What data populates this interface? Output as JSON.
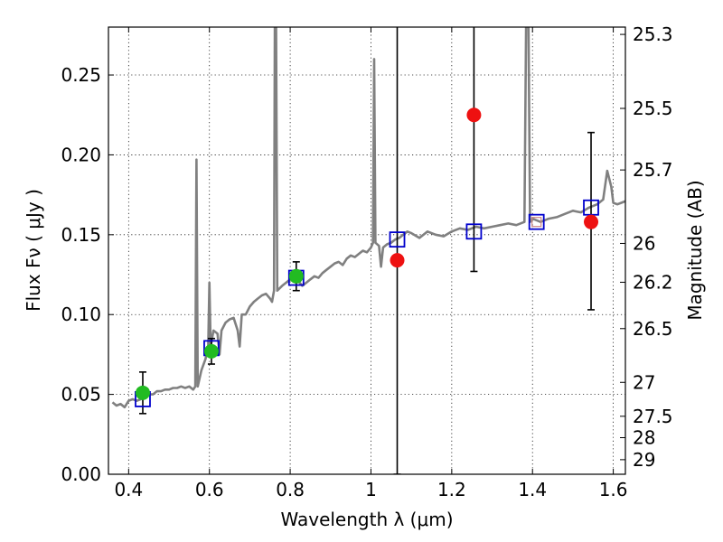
{
  "chart_data": {
    "type": "scatter",
    "xlabel": "Wavelength  λ (μm)",
    "ylabel": "Flux  Fν  ( μJy )",
    "ylabel_right": "Magnitude (AB)",
    "xlim": [
      0.35,
      1.63
    ],
    "ylim": [
      0.0,
      0.28
    ],
    "grid": true,
    "x_ticks": [
      {
        "value": 0.4,
        "label": "0.4"
      },
      {
        "value": 0.6,
        "label": "0.6"
      },
      {
        "value": 0.8,
        "label": "0.8"
      },
      {
        "value": 1.0,
        "label": "1"
      },
      {
        "value": 1.2,
        "label": "1.2"
      },
      {
        "value": 1.4,
        "label": "1.4"
      },
      {
        "value": 1.6,
        "label": "1.6"
      }
    ],
    "y_ticks": [
      {
        "value": 0.0,
        "label": "0.00"
      },
      {
        "value": 0.05,
        "label": "0.05"
      },
      {
        "value": 0.1,
        "label": "0.10"
      },
      {
        "value": 0.15,
        "label": "0.15"
      },
      {
        "value": 0.2,
        "label": "0.20"
      },
      {
        "value": 0.25,
        "label": "0.25"
      }
    ],
    "right_ticks": [
      {
        "mag": 25.3,
        "label": "25.3"
      },
      {
        "mag": 25.5,
        "label": "25.5"
      },
      {
        "mag": 25.7,
        "label": "25.7"
      },
      {
        "mag": 26.0,
        "label": "26"
      },
      {
        "mag": 26.2,
        "label": "26.2"
      },
      {
        "mag": 26.5,
        "label": "26.5"
      },
      {
        "mag": 27.0,
        "label": "27"
      },
      {
        "mag": 27.5,
        "label": "27.5"
      },
      {
        "mag": 28.0,
        "label": "28"
      },
      {
        "mag": 29.0,
        "label": "29"
      }
    ],
    "colors": {
      "model": "#808080",
      "model_photometry": "#0000cc",
      "detections": "#22bb22",
      "nondetections": "#ee1111",
      "errorbars": "#000000",
      "faint_square": "#cc8888"
    },
    "series": [
      {
        "role": "model_spectrum",
        "points": [
          [
            0.36,
            0.045
          ],
          [
            0.37,
            0.043
          ],
          [
            0.38,
            0.044
          ],
          [
            0.39,
            0.042
          ],
          [
            0.4,
            0.046
          ],
          [
            0.41,
            0.047
          ],
          [
            0.42,
            0.046
          ],
          [
            0.43,
            0.047
          ],
          [
            0.44,
            0.049
          ],
          [
            0.45,
            0.05
          ],
          [
            0.46,
            0.05
          ],
          [
            0.47,
            0.052
          ],
          [
            0.48,
            0.052
          ],
          [
            0.49,
            0.053
          ],
          [
            0.5,
            0.053
          ],
          [
            0.51,
            0.054
          ],
          [
            0.52,
            0.054
          ],
          [
            0.53,
            0.055
          ],
          [
            0.54,
            0.054
          ],
          [
            0.55,
            0.055
          ],
          [
            0.56,
            0.053
          ],
          [
            0.565,
            0.055
          ],
          [
            0.568,
            0.197
          ],
          [
            0.571,
            0.055
          ],
          [
            0.58,
            0.065
          ],
          [
            0.59,
            0.072
          ],
          [
            0.597,
            0.08
          ],
          [
            0.6,
            0.12
          ],
          [
            0.603,
            0.08
          ],
          [
            0.61,
            0.09
          ],
          [
            0.62,
            0.088
          ],
          [
            0.625,
            0.075
          ],
          [
            0.63,
            0.09
          ],
          [
            0.64,
            0.095
          ],
          [
            0.65,
            0.097
          ],
          [
            0.66,
            0.098
          ],
          [
            0.67,
            0.09
          ],
          [
            0.675,
            0.08
          ],
          [
            0.68,
            0.1
          ],
          [
            0.69,
            0.1
          ],
          [
            0.7,
            0.105
          ],
          [
            0.71,
            0.108
          ],
          [
            0.72,
            0.11
          ],
          [
            0.73,
            0.112
          ],
          [
            0.74,
            0.113
          ],
          [
            0.75,
            0.11
          ],
          [
            0.755,
            0.108
          ],
          [
            0.76,
            0.115
          ],
          [
            0.762,
            0.28
          ],
          [
            0.765,
            0.28
          ],
          [
            0.768,
            0.115
          ],
          [
            0.78,
            0.118
          ],
          [
            0.79,
            0.12
          ],
          [
            0.8,
            0.122
          ],
          [
            0.81,
            0.123
          ],
          [
            0.82,
            0.121
          ],
          [
            0.83,
            0.118
          ],
          [
            0.84,
            0.12
          ],
          [
            0.85,
            0.122
          ],
          [
            0.86,
            0.124
          ],
          [
            0.87,
            0.123
          ],
          [
            0.88,
            0.126
          ],
          [
            0.89,
            0.128
          ],
          [
            0.9,
            0.13
          ],
          [
            0.91,
            0.132
          ],
          [
            0.92,
            0.133
          ],
          [
            0.93,
            0.131
          ],
          [
            0.94,
            0.135
          ],
          [
            0.95,
            0.137
          ],
          [
            0.96,
            0.136
          ],
          [
            0.97,
            0.138
          ],
          [
            0.98,
            0.14
          ],
          [
            0.99,
            0.139
          ],
          [
            1.0,
            0.142
          ],
          [
            1.005,
            0.145
          ],
          [
            1.008,
            0.26
          ],
          [
            1.011,
            0.145
          ],
          [
            1.02,
            0.143
          ],
          [
            1.025,
            0.13
          ],
          [
            1.03,
            0.142
          ],
          [
            1.04,
            0.144
          ],
          [
            1.05,
            0.145
          ],
          [
            1.06,
            0.147
          ],
          [
            1.07,
            0.148
          ],
          [
            1.08,
            0.15
          ],
          [
            1.09,
            0.152
          ],
          [
            1.1,
            0.151
          ],
          [
            1.12,
            0.148
          ],
          [
            1.14,
            0.152
          ],
          [
            1.16,
            0.15
          ],
          [
            1.18,
            0.149
          ],
          [
            1.2,
            0.152
          ],
          [
            1.22,
            0.154
          ],
          [
            1.24,
            0.153
          ],
          [
            1.26,
            0.155
          ],
          [
            1.28,
            0.154
          ],
          [
            1.3,
            0.155
          ],
          [
            1.32,
            0.156
          ],
          [
            1.34,
            0.157
          ],
          [
            1.36,
            0.156
          ],
          [
            1.38,
            0.158
          ],
          [
            1.384,
            0.28
          ],
          [
            1.39,
            0.28
          ],
          [
            1.394,
            0.158
          ],
          [
            1.4,
            0.16
          ],
          [
            1.42,
            0.158
          ],
          [
            1.44,
            0.16
          ],
          [
            1.46,
            0.161
          ],
          [
            1.48,
            0.163
          ],
          [
            1.5,
            0.165
          ],
          [
            1.52,
            0.164
          ],
          [
            1.54,
            0.167
          ],
          [
            1.56,
            0.169
          ],
          [
            1.575,
            0.172
          ],
          [
            1.585,
            0.19
          ],
          [
            1.595,
            0.18
          ],
          [
            1.6,
            0.17
          ],
          [
            1.61,
            0.169
          ],
          [
            1.62,
            0.17
          ],
          [
            1.63,
            0.171
          ]
        ]
      },
      {
        "role": "model_photometry",
        "marker": "square-open",
        "points": [
          [
            0.435,
            0.047
          ],
          [
            0.605,
            0.079
          ],
          [
            0.815,
            0.123
          ],
          [
            1.065,
            0.147
          ],
          [
            1.255,
            0.152
          ],
          [
            1.41,
            0.158
          ],
          [
            1.545,
            0.167
          ]
        ]
      },
      {
        "role": "detections",
        "marker": "circle",
        "points": [
          [
            0.435,
            0.051
          ],
          [
            0.605,
            0.077
          ],
          [
            0.815,
            0.124
          ]
        ],
        "yerr": [
          [
            0.038,
            0.064
          ],
          [
            0.069,
            0.085
          ],
          [
            0.115,
            0.133
          ]
        ]
      },
      {
        "role": "nondetections",
        "marker": "circle",
        "points": [
          [
            1.065,
            0.134
          ],
          [
            1.255,
            0.225
          ],
          [
            1.545,
            0.158
          ]
        ],
        "yerr": [
          [
            0.0,
            0.28
          ],
          [
            0.127,
            0.28
          ],
          [
            0.103,
            0.214
          ]
        ]
      }
    ]
  }
}
